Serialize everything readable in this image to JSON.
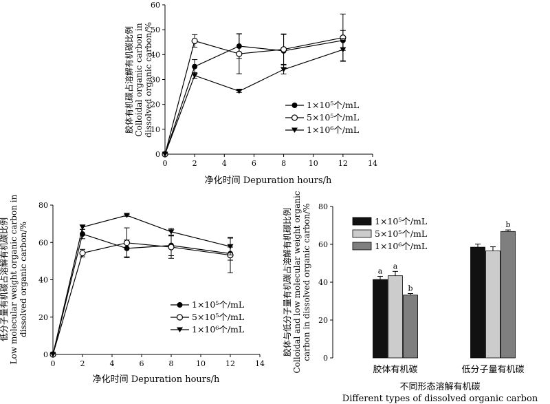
{
  "chart_data": [
    {
      "type": "line",
      "title": "",
      "xlabel": "净化时间 Depuration hours/h",
      "ylabel_lines": [
        "胶体有机碳占溶解有机碳比例",
        "Colloidal organic carbon in",
        "dissolved organic carbon/%"
      ],
      "xlim": [
        0,
        14
      ],
      "ylim": [
        0,
        60
      ],
      "xticks": [
        0,
        2,
        4,
        6,
        8,
        10,
        12,
        14
      ],
      "yticks": [
        0,
        10,
        20,
        30,
        40,
        50,
        60
      ],
      "x": [
        0,
        2,
        5,
        8,
        12
      ],
      "grid": false,
      "legend_position": "center-right",
      "series": [
        {
          "name": "1×10⁵个/mL",
          "marker": "filled-circle",
          "values": [
            0,
            35.2,
            43.4,
            41.5,
            45.7
          ],
          "errors": [
            0,
            2.8,
            5.0,
            6.8,
            4.0
          ]
        },
        {
          "name": "5×10⁵个/mL",
          "marker": "open-circle",
          "values": [
            0,
            45.5,
            40.3,
            42.1,
            46.8
          ],
          "errors": [
            0,
            2.5,
            8.0,
            6.0,
            9.5
          ]
        },
        {
          "name": "1×10⁶个/mL",
          "marker": "filled-triangle-down",
          "values": [
            0,
            31.6,
            25.3,
            34.0,
            42.0
          ],
          "errors": [
            0,
            1.2,
            0.5,
            1.8,
            4.5
          ]
        }
      ]
    },
    {
      "type": "line",
      "title": "",
      "xlabel": "净化时间 Depuration hours/h",
      "ylabel_lines": [
        "低分子量有机碳占溶解有机碳比例",
        "Low molecular weight organic carbon in",
        "dissolved organic carbon/%"
      ],
      "xlim": [
        0,
        14
      ],
      "ylim": [
        0,
        80
      ],
      "xticks": [
        0,
        2,
        4,
        6,
        8,
        10,
        12,
        14
      ],
      "yticks": [
        0,
        20,
        40,
        60,
        80
      ],
      "x": [
        0,
        2,
        5,
        8,
        12
      ],
      "grid": false,
      "legend_position": "lower-right",
      "series": [
        {
          "name": "1×10⁵个/mL",
          "marker": "filled-circle",
          "values": [
            0,
            64.5,
            56.8,
            58.4,
            54.0
          ],
          "errors": [
            0,
            2.5,
            4.5,
            5.5,
            3.5
          ]
        },
        {
          "name": "5×10⁵个/mL",
          "marker": "open-circle",
          "values": [
            0,
            54.3,
            59.8,
            57.5,
            53.2
          ],
          "errors": [
            0,
            2.0,
            8.0,
            6.0,
            9.5
          ]
        },
        {
          "name": "1×10⁶个/mL",
          "marker": "filled-triangle-down",
          "values": [
            0,
            68.2,
            74.5,
            65.7,
            57.8
          ],
          "errors": [
            0,
            1.2,
            0.5,
            1.8,
            4.5
          ]
        }
      ]
    },
    {
      "type": "bar",
      "title": "",
      "xlabel_lines": [
        "不同形态溶解有机碳",
        "Different types of dissolved organic carbon"
      ],
      "ylabel_lines": [
        "胶体与低分子量有机碳占溶解有机碳比例",
        "Colloidal and low molecular weight organic",
        "carbon in dissolved organic carbon/%"
      ],
      "ylim": [
        0,
        80
      ],
      "yticks": [
        0,
        20,
        40,
        60,
        80
      ],
      "categories": [
        "胶体有机碳",
        "低分子量有机碳"
      ],
      "grid": false,
      "legend_position": "top-left",
      "series": [
        {
          "name": "1×10⁵个/mL",
          "color": "#111111",
          "values": [
            41.4,
            58.5
          ],
          "errors": [
            1.7,
            1.6
          ],
          "labels": [
            "a",
            ""
          ]
        },
        {
          "name": "5×10⁵个/mL",
          "color": "#cccccc",
          "values": [
            43.4,
            56.5
          ],
          "errors": [
            2.3,
            2.2
          ],
          "labels": [
            "a",
            ""
          ]
        },
        {
          "name": "1×10⁶个/mL",
          "color": "#7f7f7f",
          "values": [
            33.2,
            66.8
          ],
          "errors": [
            0.8,
            0.8
          ],
          "labels": [
            "b",
            "b"
          ]
        }
      ]
    }
  ]
}
